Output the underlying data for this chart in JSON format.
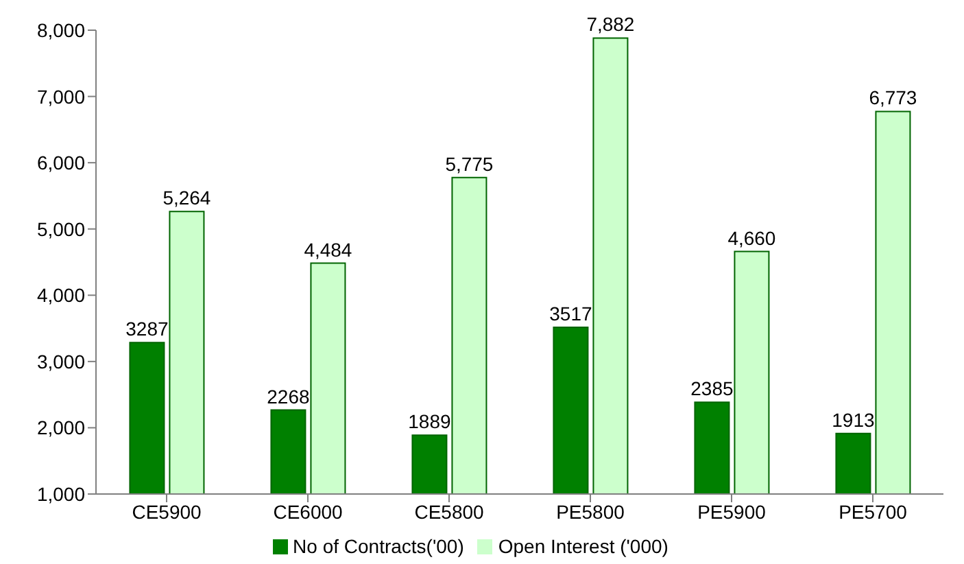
{
  "chart_data": {
    "type": "bar",
    "categories": [
      "CE5900",
      "CE6000",
      "CE5800",
      "PE5800",
      "PE5900",
      "PE5700"
    ],
    "series": [
      {
        "name": "No of Contracts('00)",
        "color": "#008000",
        "values": [
          3287,
          2268,
          1889,
          3517,
          2385,
          1913
        ],
        "value_labels": [
          "3287",
          "2268",
          "1889",
          "3517",
          "2385",
          "1913"
        ]
      },
      {
        "name": "Open Interest ('000)",
        "color": "#ccffcc",
        "values": [
          5264,
          4484,
          5775,
          7882,
          4660,
          6773
        ],
        "value_labels": [
          "5,264",
          "4,484",
          "5,775",
          "7,882",
          "4,660",
          "6,773"
        ]
      }
    ],
    "ylim": [
      1000,
      8000
    ],
    "yticks": [
      {
        "value": 1000,
        "label": "1,000"
      },
      {
        "value": 2000,
        "label": "2,000"
      },
      {
        "value": 3000,
        "label": "3,000"
      },
      {
        "value": 4000,
        "label": "4,000"
      },
      {
        "value": 5000,
        "label": "5,000"
      },
      {
        "value": 6000,
        "label": "6,000"
      },
      {
        "value": 7000,
        "label": "7,000"
      },
      {
        "value": 8000,
        "label": "8,000"
      }
    ],
    "grid": false,
    "legend": "bottom"
  }
}
